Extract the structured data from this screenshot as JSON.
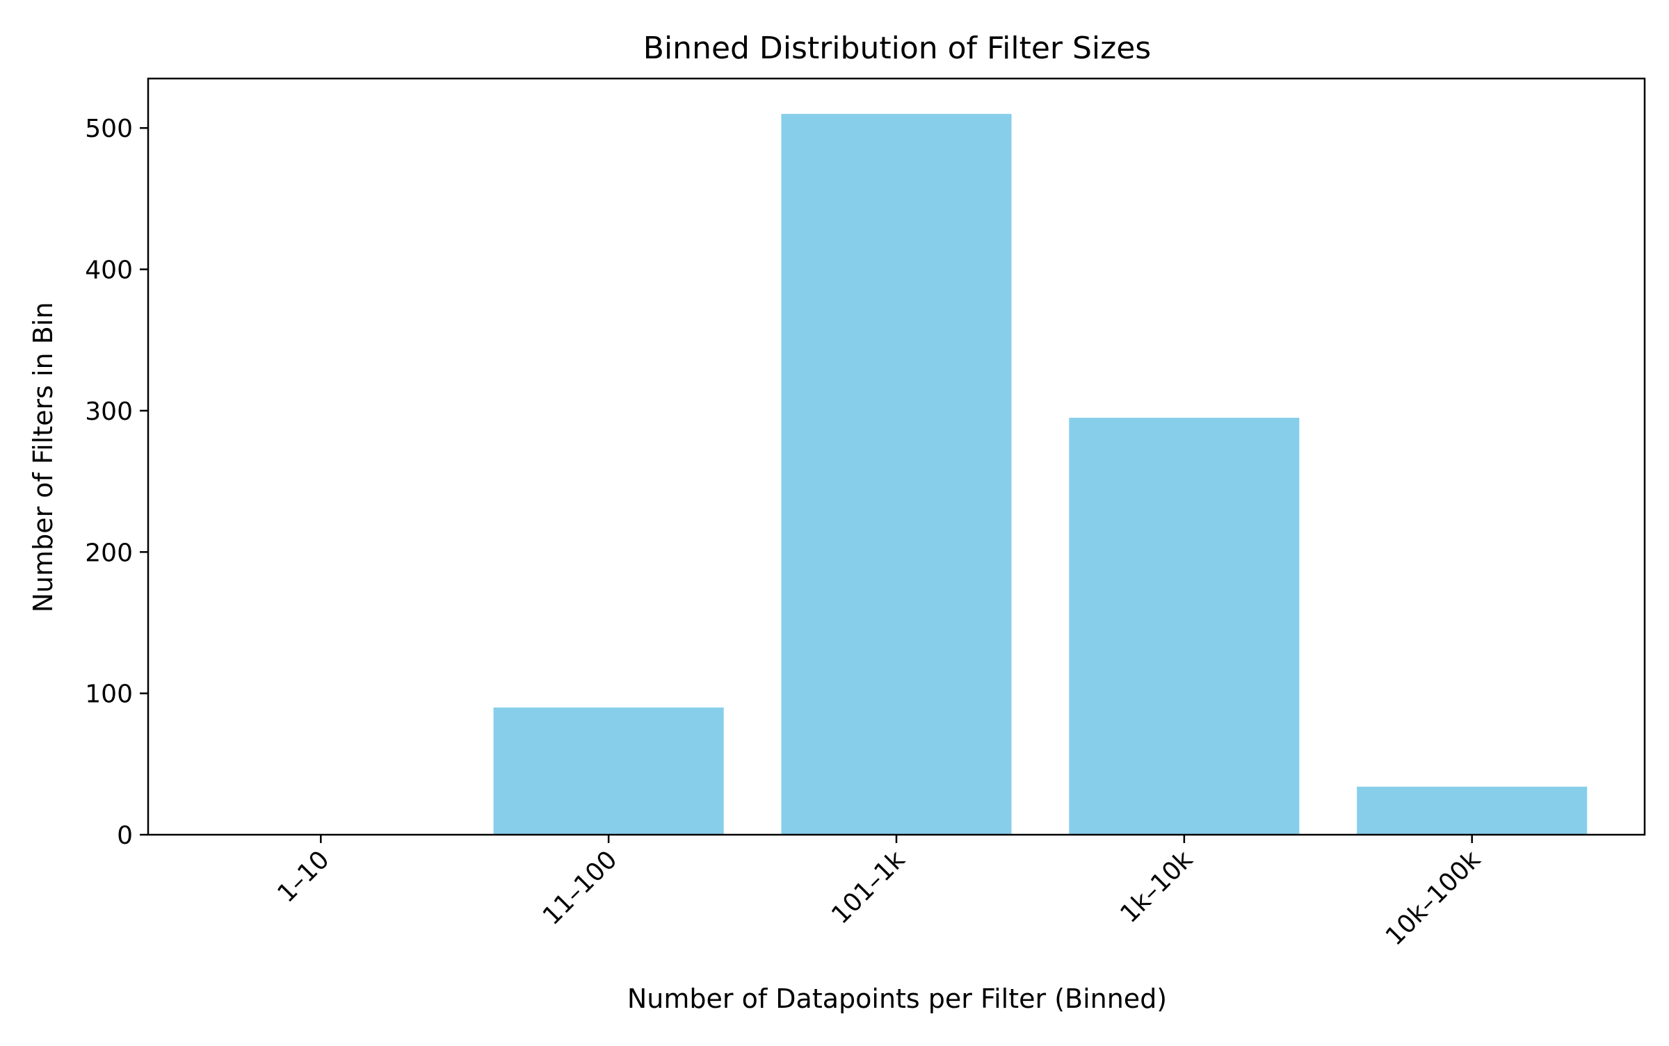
{
  "chart_data": {
    "type": "bar",
    "title": "Binned Distribution of Filter Sizes",
    "xlabel": "Number of Datapoints per Filter (Binned)",
    "ylabel": "Number of Filters in Bin",
    "categories": [
      "1–10",
      "11–100",
      "101–1k",
      "1k–10k",
      "10k–100k"
    ],
    "values": [
      0,
      90,
      510,
      295,
      34
    ],
    "ylim": [
      0,
      535
    ],
    "yticks": [
      0,
      100,
      200,
      300,
      400,
      500
    ],
    "bar_color": "#87CEEB",
    "grid": false,
    "legend": "none"
  }
}
